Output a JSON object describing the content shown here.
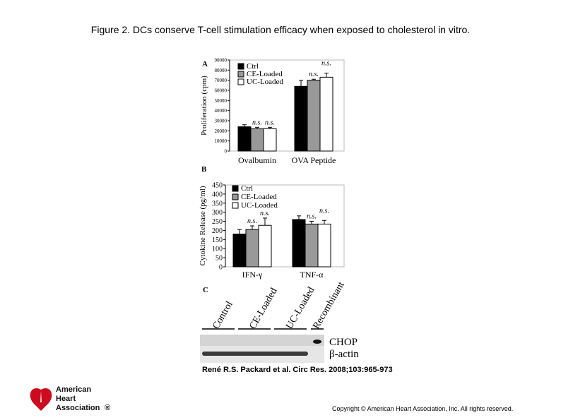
{
  "title": "Figure 2. DCs conserve T-cell stimulation efficacy when exposed to cholesterol in vitro.",
  "citation": "René R.S. Packard et al. Circ Res. 2008;103:965-973",
  "copyright": "Copyright © American Heart Association, Inc. All rights reserved.",
  "logo": {
    "line1": "American",
    "line2": "Heart",
    "line3": "Association",
    "mark": "®"
  },
  "colors": {
    "ctrl": "#000000",
    "ce": "#999999",
    "uc": "#ffffff"
  },
  "panels": {
    "a": {
      "letter": "A"
    },
    "b": {
      "letter": "B"
    },
    "c": {
      "letter": "C",
      "lane_labels": [
        "Control",
        "CE-Loaded",
        "UC-Loaded",
        "Recombinant"
      ],
      "band_labels": [
        "CHOP",
        "β-actin"
      ]
    }
  },
  "chart_data": [
    {
      "type": "bar",
      "panel": "A",
      "ylabel": "Proliferation (cpm)",
      "categories": [
        "Ovalbumin",
        "OVA Peptide"
      ],
      "ylim": [
        0,
        90000
      ],
      "yticks": [
        0,
        10000,
        20000,
        30000,
        40000,
        50000,
        60000,
        70000,
        80000,
        90000
      ],
      "series": [
        {
          "name": "Ctrl",
          "values": [
            24000,
            64000
          ],
          "errors": [
            2000,
            6000
          ]
        },
        {
          "name": "CE-Loaded",
          "values": [
            22000,
            70000
          ],
          "errors": [
            1500,
            1000
          ]
        },
        {
          "name": "UC-Loaded",
          "values": [
            22000,
            73000
          ],
          "errors": [
            1500,
            4000
          ]
        }
      ],
      "annotations": [
        {
          "category": 0,
          "series": 1,
          "text": "n.s."
        },
        {
          "category": 0,
          "series": 2,
          "text": "n.s."
        },
        {
          "category": 1,
          "series": 1,
          "text": "n.s."
        },
        {
          "category": 1,
          "series": 2,
          "text": "n.s."
        }
      ],
      "legend": "top-left"
    },
    {
      "type": "bar",
      "panel": "B",
      "ylabel": "Cytokine Release (pg/ml)",
      "categories": [
        "IFN-γ",
        "TNF-α"
      ],
      "ylim": [
        0,
        450
      ],
      "yticks": [
        0,
        50,
        100,
        150,
        200,
        250,
        300,
        350,
        400,
        450
      ],
      "series": [
        {
          "name": "Ctrl",
          "values": [
            180,
            260
          ],
          "errors": [
            25,
            20
          ]
        },
        {
          "name": "CE-Loaded",
          "values": [
            205,
            235
          ],
          "errors": [
            20,
            15
          ]
        },
        {
          "name": "UC-Loaded",
          "values": [
            228,
            235
          ],
          "errors": [
            40,
            20
          ]
        }
      ],
      "annotations": [
        {
          "category": 0,
          "series": 1,
          "text": "n.s."
        },
        {
          "category": 0,
          "series": 2,
          "text": "n.s."
        },
        {
          "category": 1,
          "series": 1,
          "text": "n.s."
        },
        {
          "category": 1,
          "series": 2,
          "text": "n.s."
        }
      ],
      "legend": "top-left"
    }
  ]
}
